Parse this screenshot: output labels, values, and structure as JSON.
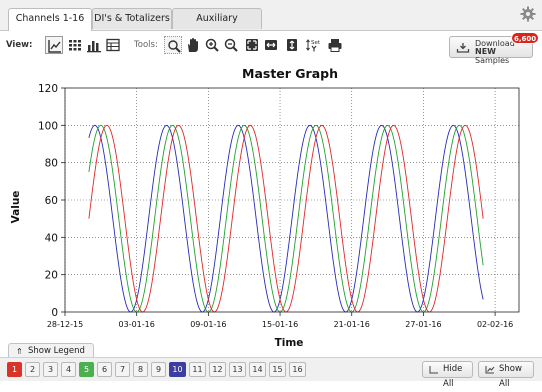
{
  "tabs": [
    {
      "label": "Channels 1-16",
      "active": true
    },
    {
      "label": "DI's & Totalizers",
      "active": false
    },
    {
      "label": "Auxiliary Channels",
      "active": false
    }
  ],
  "toolbar": {
    "view_label": "View:",
    "tools_label": "Tools:",
    "view_buttons": [
      "line-chart-icon",
      "grid-icon",
      "bar-chart-icon",
      "table-icon"
    ],
    "tool_buttons": [
      "zoom-box-icon",
      "pan-hand-icon",
      "zoom-in-icon",
      "zoom-out-icon",
      "zoom-fit-icon",
      "zoom-horizontal-icon",
      "zoom-vertical-icon",
      "set-y-icon",
      "print-icon"
    ],
    "set_y_label": "Set",
    "download": {
      "line1": "Download",
      "line2_bold": "NEW",
      "line2_rest": " Samples",
      "badge": "6,600"
    }
  },
  "chart_data": {
    "type": "line",
    "title": "Master Graph",
    "xlabel": "Time",
    "ylabel": "Value",
    "xlim": [
      "2015-12-28",
      "2016-02-04"
    ],
    "ylim": [
      0,
      120
    ],
    "x_ticks": [
      "28-12-15",
      "03-01-16",
      "09-01-16",
      "15-01-16",
      "21-01-16",
      "27-01-16",
      "02-02-16"
    ],
    "y_ticks": [
      0,
      20,
      40,
      60,
      80,
      100,
      120
    ],
    "grid": true,
    "series": [
      {
        "color": "#2a2ab8",
        "x": [
          "2015-12-30 12:00",
          "2016-01-05 12:00",
          "2016-01-11 12:00",
          "2016-01-17 12:00",
          "2016-01-23 12:00",
          "2016-01-29 12:00"
        ],
        "y": [
          100,
          100,
          100,
          100,
          100,
          100
        ],
        "period_days": 6.0,
        "first_point": [
          "2015-12-30 00:00",
          96
        ],
        "last_point": [
          "2016-02-01 00:00",
          3
        ]
      },
      {
        "color": "#22a030",
        "x": [
          "2015-12-31 00:00",
          "2016-01-06 00:00",
          "2016-01-12 00:00",
          "2016-01-18 00:00",
          "2016-01-24 00:00",
          "2016-01-30 00:00"
        ],
        "y": [
          100,
          100,
          100,
          100,
          100,
          100
        ],
        "period_days": 6.0,
        "first_point": [
          "2015-12-30 00:00",
          78
        ],
        "last_point": [
          "2016-02-01 00:00",
          19
        ]
      },
      {
        "color": "#e02828",
        "x": [
          "2015-12-31 12:00",
          "2016-01-06 12:00",
          "2016-01-12 12:00",
          "2016-01-18 12:00",
          "2016-01-24 12:00",
          "2016-01-30 12:00"
        ],
        "y": [
          100,
          100,
          100,
          100,
          100,
          100
        ],
        "period_days": 6.0,
        "first_point": [
          "2015-12-30 00:00",
          50
        ],
        "last_point": [
          "2016-02-01 00:00",
          43
        ]
      }
    ]
  },
  "legend_button": {
    "label": "Show Legend"
  },
  "channels": [
    {
      "n": "1",
      "on": true,
      "color": "#d9342b"
    },
    {
      "n": "2",
      "on": false
    },
    {
      "n": "3",
      "on": false
    },
    {
      "n": "4",
      "on": false
    },
    {
      "n": "5",
      "on": true,
      "color": "#4caf50"
    },
    {
      "n": "6",
      "on": false
    },
    {
      "n": "7",
      "on": false
    },
    {
      "n": "8",
      "on": false
    },
    {
      "n": "9",
      "on": false
    },
    {
      "n": "10",
      "on": true,
      "color": "#3b3e9e"
    },
    {
      "n": "11",
      "on": false
    },
    {
      "n": "12",
      "on": false
    },
    {
      "n": "13",
      "on": false
    },
    {
      "n": "14",
      "on": false
    },
    {
      "n": "15",
      "on": false
    },
    {
      "n": "16",
      "on": false
    }
  ],
  "actions": {
    "hide_all": "Hide All",
    "show_all": "Show All"
  }
}
